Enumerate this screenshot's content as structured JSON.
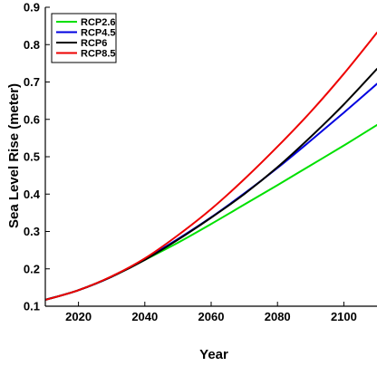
{
  "chart_data": {
    "type": "line",
    "xlabel": "Year",
    "ylabel": "Sea Level Rise (meter)",
    "xlim": [
      2010,
      2110
    ],
    "ylim": [
      0.1,
      0.9
    ],
    "xticks": [
      2020,
      2040,
      2060,
      2080,
      2100
    ],
    "yticks": [
      0.1,
      0.2,
      0.3,
      0.4,
      0.5,
      0.6,
      0.7,
      0.8,
      0.9
    ],
    "grid": false,
    "legend_position": "top-left",
    "x": [
      2010,
      2020,
      2030,
      2040,
      2050,
      2060,
      2070,
      2080,
      2090,
      2100,
      2110
    ],
    "series": [
      {
        "name": "RCP2.6",
        "color": "#00e000",
        "values": [
          0.117,
          0.143,
          0.179,
          0.224,
          0.27,
          0.32,
          0.372,
          0.424,
          0.477,
          0.53,
          0.585
        ]
      },
      {
        "name": "RCP4.5",
        "color": "#0000e0",
        "values": [
          0.117,
          0.143,
          0.179,
          0.226,
          0.28,
          0.338,
          0.402,
          0.47,
          0.543,
          0.618,
          0.695
        ]
      },
      {
        "name": "RCP6",
        "color": "#000000",
        "values": [
          0.117,
          0.143,
          0.179,
          0.224,
          0.278,
          0.337,
          0.4,
          0.472,
          0.553,
          0.64,
          0.735
        ]
      },
      {
        "name": "RCP8.5",
        "color": "#ee0000",
        "values": [
          0.117,
          0.143,
          0.18,
          0.228,
          0.29,
          0.36,
          0.44,
          0.527,
          0.62,
          0.722,
          0.832
        ]
      }
    ]
  }
}
